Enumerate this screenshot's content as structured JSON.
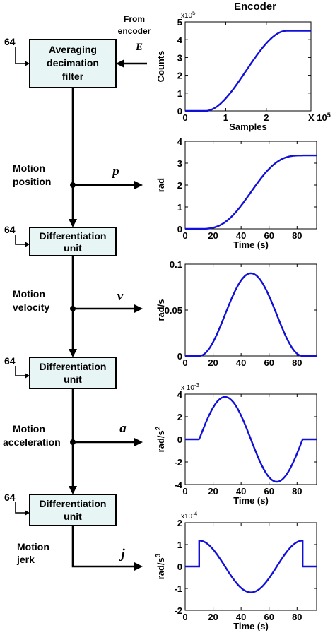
{
  "diagram": {
    "blocks": [
      {
        "line1": "Averaging",
        "line2": "decimation",
        "line3": "filter"
      },
      {
        "line1": "Differentiation",
        "line2": "unit"
      },
      {
        "line1": "Differentiation",
        "line2": "unit"
      },
      {
        "line1": "Differentiation",
        "line2": "unit"
      }
    ],
    "decimation_inputs": [
      "64",
      "64",
      "64",
      "64"
    ],
    "source": {
      "line1": "From",
      "line2": "encoder",
      "symbol": "E"
    },
    "outputs": [
      {
        "label1": "Motion",
        "label2": "position",
        "symbol": "p"
      },
      {
        "label1": "Motion",
        "label2": "velocity",
        "symbol": "v"
      },
      {
        "label1": "Motion",
        "label2": "acceleration",
        "symbol": "a"
      },
      {
        "label1": "Motion",
        "label2": "jerk",
        "symbol": "j"
      }
    ]
  },
  "chart_data": [
    {
      "type": "line",
      "title": "Encoder",
      "xlabel": "Samples",
      "ylabel": "Counts",
      "x_multiplier": "X 10",
      "x_exponent": "5",
      "y_multiplier": "x10",
      "y_exponent": "5",
      "xlim": [
        0,
        3.1
      ],
      "ylim": [
        0,
        5
      ],
      "xticks": [
        "0",
        "1",
        "2"
      ],
      "xtick_values": [
        0,
        1,
        2
      ],
      "yticks": [
        "0",
        "1",
        "2",
        "3",
        "4",
        "5"
      ],
      "ytick_values": [
        0,
        1,
        2,
        3,
        4,
        5
      ],
      "curve": {
        "kind": "s_curve",
        "start": 0.5,
        "end": 2.5,
        "max": 4.5
      }
    },
    {
      "type": "line",
      "xlabel": "Time (s)",
      "ylabel": "rad",
      "xlim": [
        0,
        94
      ],
      "ylim": [
        0,
        4
      ],
      "xticks": [
        "0",
        "20",
        "40",
        "60",
        "80"
      ],
      "xtick_values": [
        0,
        20,
        40,
        60,
        80
      ],
      "yticks": [
        "0",
        "1",
        "2",
        "3",
        "4"
      ],
      "ytick_values": [
        0,
        1,
        2,
        3,
        4
      ],
      "curve": {
        "kind": "position",
        "start": 10,
        "end": 84,
        "max": 3.35
      }
    },
    {
      "type": "line",
      "xlabel": "",
      "ylabel": "rad/s",
      "xlim": [
        0,
        94
      ],
      "ylim": [
        0,
        0.1
      ],
      "xticks": [
        "0",
        "20",
        "40",
        "60",
        "80"
      ],
      "xtick_values": [
        0,
        20,
        40,
        60,
        80
      ],
      "yticks": [
        "0",
        "0.05",
        "0.1"
      ],
      "ytick_values": [
        0,
        0.05,
        0.1
      ],
      "curve": {
        "kind": "velocity",
        "start": 10,
        "end": 84,
        "max": 0.09
      }
    },
    {
      "type": "line",
      "xlabel": "Time (s)",
      "ylabel": "rad/s",
      "ylabel_exp": "2",
      "y_multiplier": "x 10",
      "y_exponent": "-3",
      "xlim": [
        0,
        94
      ],
      "ylim": [
        -4,
        4
      ],
      "xticks": [
        "0",
        "20",
        "40",
        "60",
        "80"
      ],
      "xtick_values": [
        0,
        20,
        40,
        60,
        80
      ],
      "yticks": [
        "-4",
        "-2",
        "0",
        "2",
        "4"
      ],
      "ytick_values": [
        -4,
        -2,
        0,
        2,
        4
      ],
      "curve": {
        "kind": "acceleration",
        "start": 10,
        "end": 84,
        "max": 3.75
      }
    },
    {
      "type": "line",
      "xlabel": "Time (s)",
      "ylabel": "rad/s",
      "ylabel_exp": "3",
      "y_multiplier": "x10",
      "y_exponent": "-4",
      "xlim": [
        0,
        94
      ],
      "ylim": [
        -2,
        2
      ],
      "xticks": [
        "0",
        "20",
        "40",
        "60",
        "80"
      ],
      "xtick_values": [
        0,
        20,
        40,
        60,
        80
      ],
      "yticks": [
        "-2",
        "-1",
        "0",
        "1",
        "2"
      ],
      "ytick_values": [
        -2,
        -1,
        0,
        1,
        2
      ],
      "curve": {
        "kind": "jerk",
        "start": 10,
        "end": 84,
        "max": 1.18
      }
    }
  ]
}
